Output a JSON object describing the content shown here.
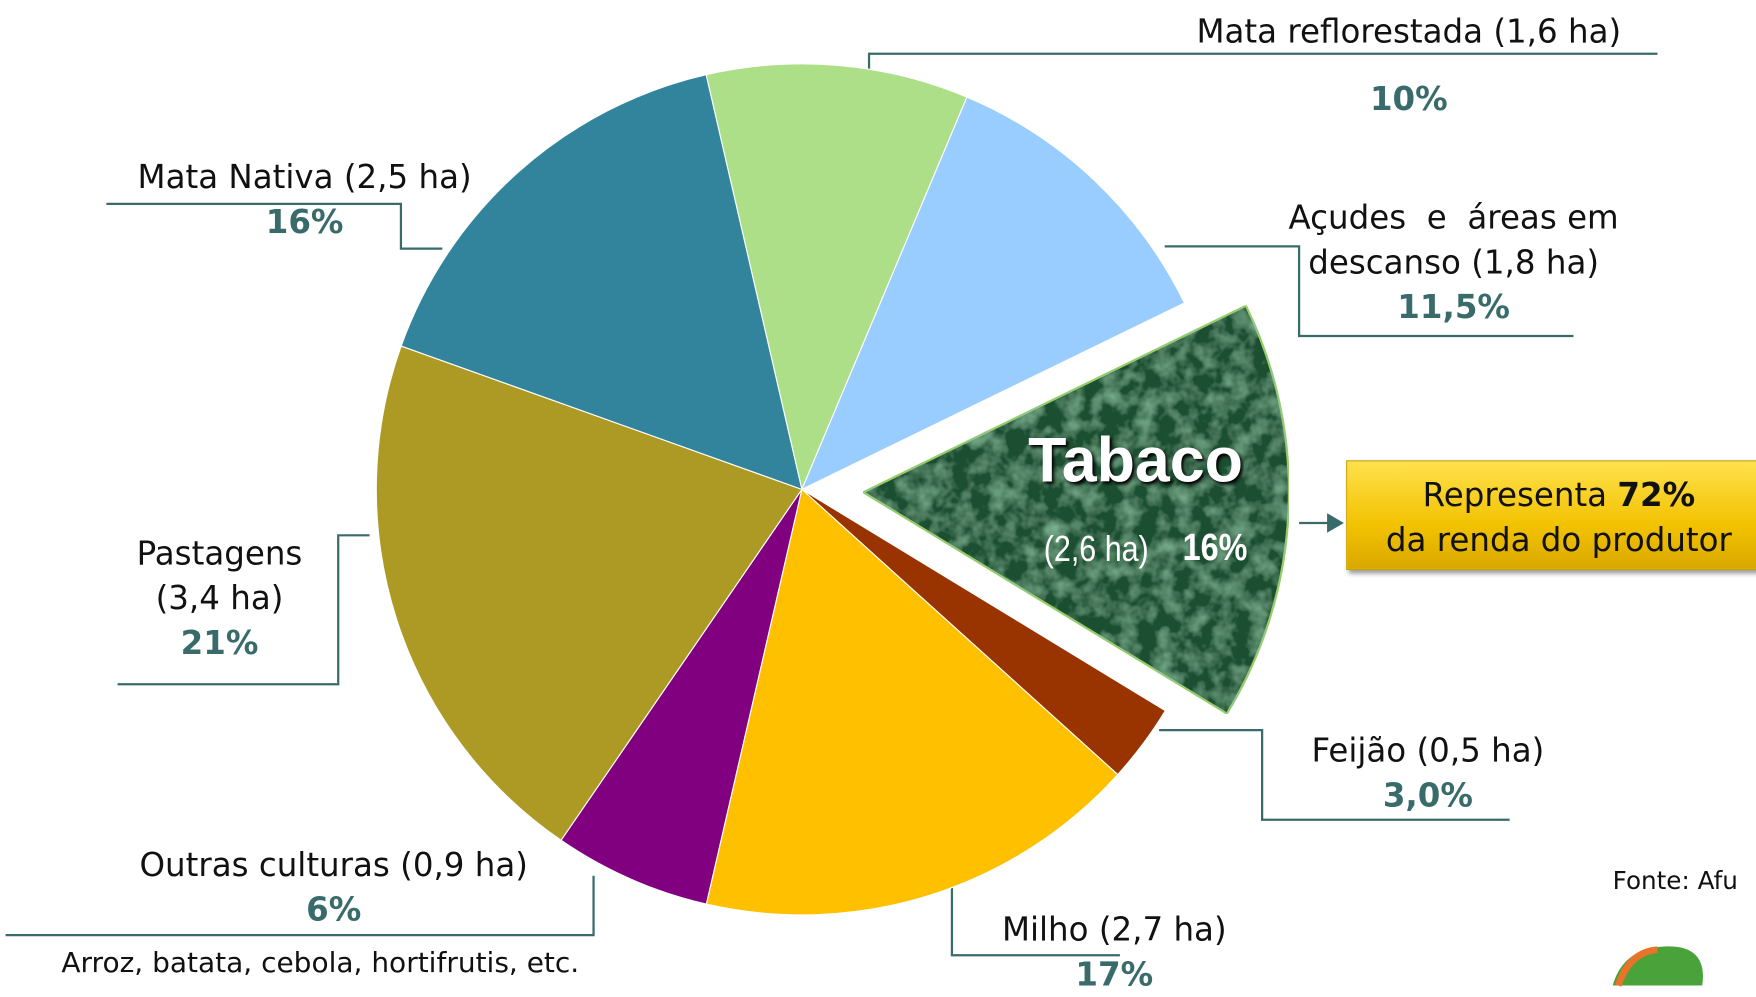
{
  "chart_data": {
    "type": "pie",
    "categories": [
      "Mata reflorestada",
      "Açudes  e  áreas em descanso",
      "Tabaco",
      "Feijão",
      "Milho",
      "Outras culturas",
      "Pastagens",
      "Mata Nativa"
    ],
    "areas": [
      "(1,6 ha)",
      "(1,8 ha)",
      "(2,6 ha)",
      "(0,5 ha)",
      "(2,7 ha)",
      "(0,9 ha)",
      "(3,4 ha)",
      "(2,5 ha)"
    ],
    "values": [
      10,
      11.5,
      16,
      3.0,
      17,
      6,
      21,
      16
    ],
    "value_labels": [
      "10%",
      "11,5%",
      "16%",
      "3,0%",
      "17%",
      "6%",
      "21%",
      "16%"
    ],
    "colors": [
      "#acdf87",
      "#99ccff",
      "#1f5030",
      "#993300",
      "#ffc000",
      "#800080",
      "#ad9a24",
      "#31849b"
    ],
    "exploded": "Tabaco",
    "callout": {
      "before": "Representa",
      "bold": "72%",
      "after": "da renda do produtor"
    },
    "footnote": "Arroz, batata, cebola, hortifrutis, etc.",
    "source": "Fonte: Afu"
  }
}
